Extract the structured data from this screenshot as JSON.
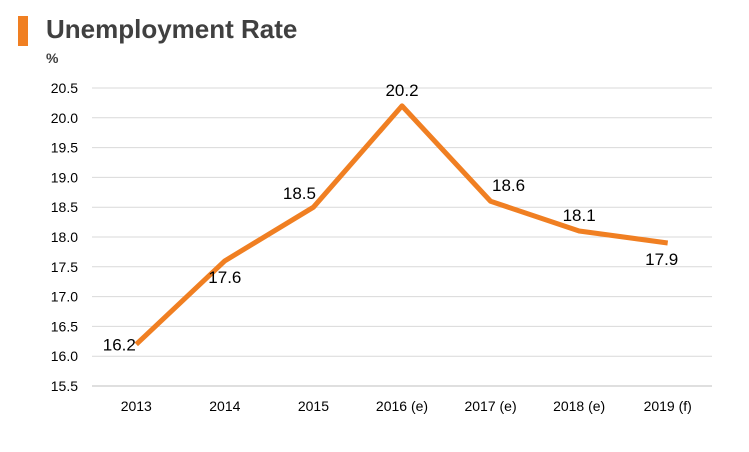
{
  "header": {
    "title": "Unemployment Rate",
    "unit": "%"
  },
  "colors": {
    "accent": "#F07F22",
    "grid": "#D9D9D9",
    "axis_text": "#000000"
  },
  "chart_data": {
    "type": "line",
    "title": "Unemployment Rate",
    "ylabel": "%",
    "xlabel": "",
    "categories": [
      "2013",
      "2014",
      "2015",
      "2016 (e)",
      "2017 (e)",
      "2018 (e)",
      "2019 (f)"
    ],
    "series": [
      {
        "values": [
          16.2,
          17.6,
          18.5,
          20.2,
          18.6,
          18.1,
          17.9
        ],
        "data_labels": [
          "16.2",
          "17.6",
          "18.5",
          "20.2",
          "18.6",
          "18.1",
          "17.9"
        ]
      }
    ],
    "ylim": [
      15.5,
      20.5
    ],
    "yticks": [
      "15.5",
      "16.0",
      "16.5",
      "17.0",
      "17.5",
      "18.0",
      "18.5",
      "19.0",
      "19.5",
      "20.0",
      "20.5"
    ],
    "grid": true,
    "legend": "none"
  }
}
